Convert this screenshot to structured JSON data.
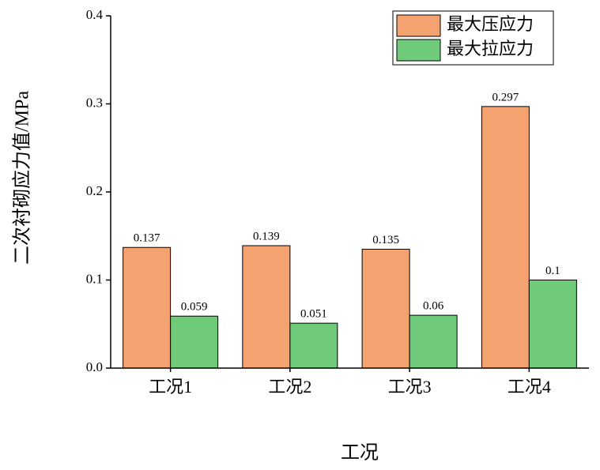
{
  "chart_data": {
    "type": "bar",
    "x_label": "工况",
    "y_label": "二次衬砌应力值/MPa",
    "categories": [
      "工况1",
      "工况2",
      "工况3",
      "工况4"
    ],
    "series": [
      {
        "name": "最大压应力",
        "color": "#F4A270",
        "values": [
          0.137,
          0.139,
          0.135,
          0.297
        ]
      },
      {
        "name": "最大拉应力",
        "color": "#6FCB7A",
        "values": [
          0.059,
          0.051,
          0.06,
          0.1
        ]
      }
    ],
    "ylim": [
      0,
      0.4
    ],
    "yticks": [
      {
        "value": 0,
        "label": "0.0"
      },
      0.1,
      0.2,
      0.3,
      0.4
    ],
    "legend": "upper right",
    "grid": false
  }
}
